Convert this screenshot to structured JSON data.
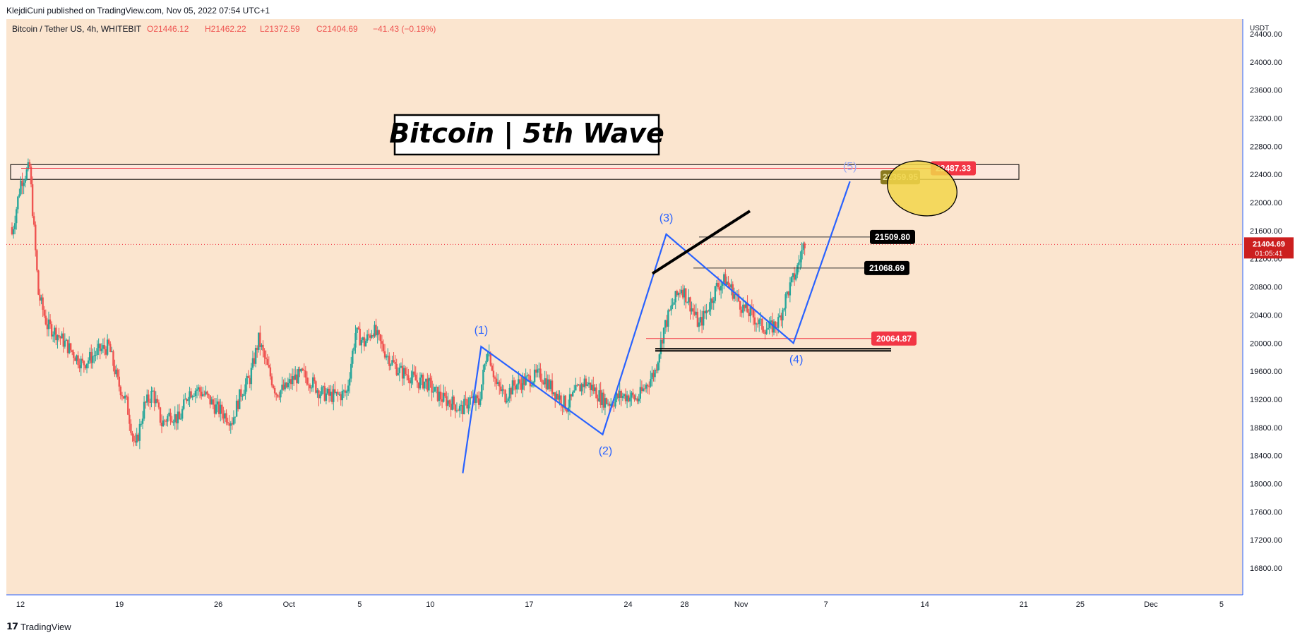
{
  "header": {
    "published": "KlejdiCuni published on TradingView.com, Nov 05, 2022 07:54 UTC+1"
  },
  "symbol": {
    "name": "Bitcoin / Tether US, 4h, WHITEBIT",
    "open": "O21446.12",
    "high": "H21462.22",
    "low": "L21372.59",
    "close": "C21404.69",
    "change": "−41.43 (−0.19%)"
  },
  "title_box": "Bitcoin | 5th Wave",
  "footer": {
    "brand": "TradingView"
  },
  "colors": {
    "background": "#fbe5cf",
    "up": "#26a69a",
    "down": "#ef5350",
    "wave": "#2962ff",
    "label_red": "#f23645"
  },
  "chart_data": {
    "type": "candlestick",
    "price_unit": "USDT",
    "ylim": [
      16400,
      24600
    ],
    "y_ticks": [
      24400,
      24000,
      23600,
      23200,
      22800,
      22400,
      22000,
      21600,
      21200,
      20800,
      20400,
      20000,
      19600,
      19200,
      18800,
      18400,
      18000,
      17600,
      17200,
      16800
    ],
    "y_tick_labels": [
      "24400.00",
      "24000.00",
      "23600.00",
      "23200.00",
      "22800.00",
      "22400.00",
      "22000.00",
      "21600.00",
      "21200.00",
      "20800.00",
      "20400.00",
      "20000.00",
      "19600.00",
      "19200.00",
      "18800.00",
      "18400.00",
      "18000.00",
      "17600.00",
      "17200.00",
      "16800.00"
    ],
    "x_ticks": [
      "12",
      "19",
      "26",
      "Oct",
      "5",
      "10",
      "17",
      "24",
      "28",
      "Nov",
      "7",
      "14",
      "21",
      "25",
      "Dec",
      "5"
    ],
    "x_tick_days": [
      0,
      7,
      14,
      19,
      24,
      29,
      36,
      43,
      47,
      51,
      57,
      64,
      71,
      75,
      80,
      85
    ],
    "xlim_days": [
      -1,
      86.5
    ],
    "current_price": {
      "value": 21404.69,
      "label": "21404.69",
      "countdown": "01:05:41"
    },
    "levels": [
      {
        "label": "22487.33",
        "value": 22487.33,
        "style": "red"
      },
      {
        "label": "22359.95",
        "value": 22359.95,
        "style": "olive"
      },
      {
        "label": "21509.80",
        "value": 21509.8,
        "style": "black"
      },
      {
        "label": "21068.69",
        "value": 21068.69,
        "style": "black"
      },
      {
        "label": "20064.87",
        "value": 20064.87,
        "style": "red"
      }
    ],
    "resistance_zone": [
      22330,
      22540
    ],
    "waves": [
      {
        "label": "(1)",
        "day": 32.6,
        "price": 19950
      },
      {
        "label": "(2)",
        "day": 41.2,
        "price": 18700
      },
      {
        "label": "(3)",
        "day": 45.7,
        "price": 21550
      },
      {
        "label": "(4)",
        "day": 54.7,
        "price": 20000
      },
      {
        "label": "(5)",
        "day": 58.7,
        "price": 22300
      }
    ],
    "wave_path": [
      [
        31.3,
        18150
      ],
      [
        32.6,
        19950
      ],
      [
        41.2,
        18700
      ],
      [
        45.7,
        21550
      ],
      [
        54.7,
        20000
      ],
      [
        58.7,
        22300
      ]
    ],
    "closes": [
      21550,
      22300,
      22500,
      20700,
      20250,
      20150,
      20000,
      19850,
      19700,
      19800,
      19900,
      19950,
      19450,
      19150,
      18500,
      19100,
      19300,
      18850,
      19000,
      18900,
      19300,
      19350,
      19250,
      19100,
      19000,
      18900,
      19300,
      19500,
      20050,
      19650,
      19300,
      19350,
      19500,
      19550,
      19450,
      19300,
      19250,
      19250,
      19300,
      20150,
      20000,
      20200,
      19950,
      19750,
      19600,
      19550,
      19450,
      19450,
      19300,
      19200,
      19150,
      19050,
      19200,
      19150,
      19950,
      19400,
      19250,
      19400,
      19450,
      19500,
      19550,
      19400,
      19250,
      19100,
      19300,
      19450,
      19350,
      19200,
      19150,
      19250,
      19250,
      19200,
      19400,
      19600,
      20200,
      20550,
      20800,
      20550,
      20250,
      20500,
      20800,
      20900,
      20700,
      20500,
      20400,
      20250,
      20200,
      20300,
      20700,
      21000,
      21450
    ]
  }
}
